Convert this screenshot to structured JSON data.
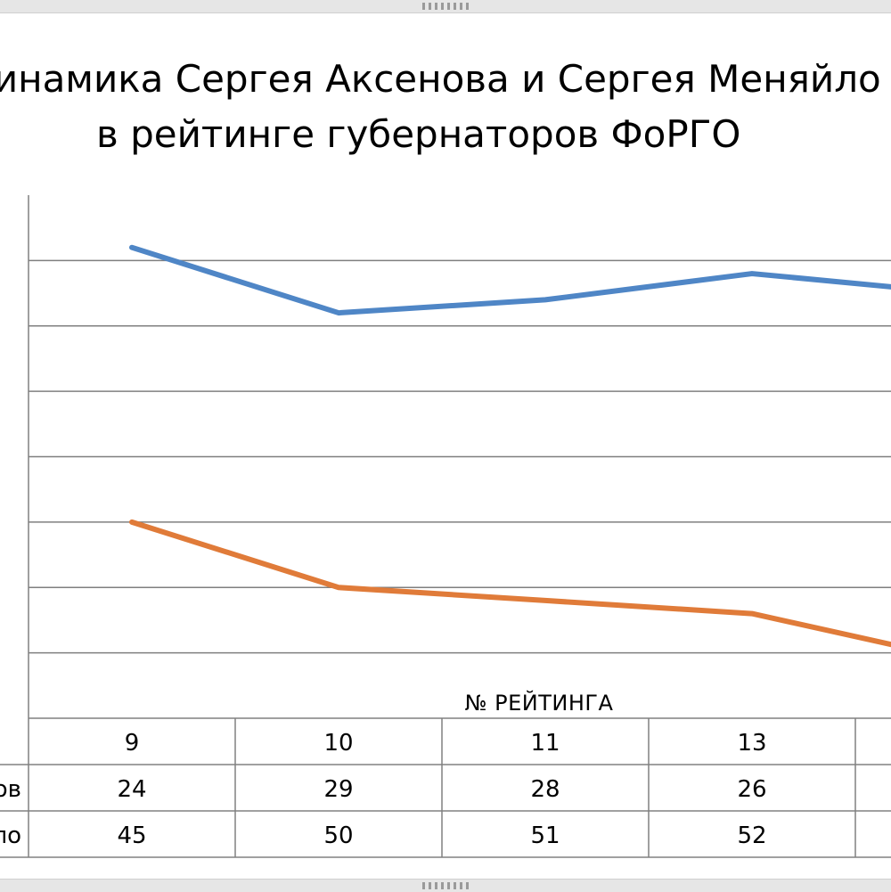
{
  "chart_data": {
    "type": "line",
    "title_lines": [
      "Динамика Сергея Аксенова и Сергея Меняйло",
      "в рейтинге губернаторов ФоРГО"
    ],
    "xlabel": "№ РЕЙТИНГА",
    "categories": [
      "9",
      "10",
      "11",
      "13",
      ""
    ],
    "series": [
      {
        "name": "Аксенов",
        "values": [
          24,
          29,
          28,
          26,
          27.5
        ],
        "color": "#4f86c6"
      },
      {
        "name": "Меняйло",
        "values": [
          45,
          50,
          51,
          52,
          55.5
        ],
        "color": "#e07b39"
      }
    ],
    "table_rows": [
      {
        "label": "Аксенов",
        "values": [
          "24",
          "29",
          "28",
          "26",
          ""
        ]
      },
      {
        "label": "Меняйло",
        "values": [
          "45",
          "50",
          "51",
          "52",
          ""
        ]
      }
    ],
    "ylim": [
      20,
      60
    ],
    "y_inverted": true,
    "grid": true,
    "legend": "table-below"
  }
}
